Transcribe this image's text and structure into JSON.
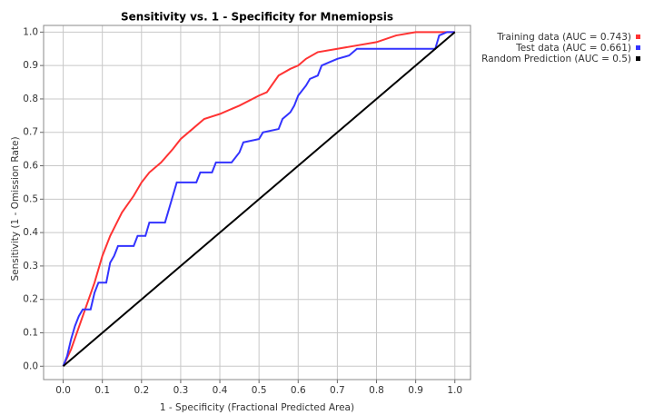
{
  "chart_data": {
    "type": "line",
    "title": "Sensitivity vs. 1 - Specificity for Mnemiopsis",
    "x_label": "1 - Specificity  (Fractional Predicted Area)",
    "y_label": "Sensitivity  (1 - Omission Rate)",
    "xlim": [
      -0.05,
      1.04
    ],
    "ylim": [
      -0.04,
      1.02
    ],
    "xticks": [
      {
        "value": 0,
        "label": "0.0"
      },
      0.1,
      0.2,
      0.3,
      0.4,
      0.5,
      0.6,
      0.7,
      0.8,
      0.9,
      {
        "value": 1,
        "label": "1.0"
      }
    ],
    "yticks": [
      {
        "value": 0,
        "label": "0.0"
      },
      0.1,
      0.2,
      0.3,
      0.4,
      0.5,
      0.6,
      0.7,
      0.8,
      0.9,
      {
        "value": 1,
        "label": "1.0"
      }
    ],
    "grid": true,
    "legend": "outside-top-right",
    "series": [
      {
        "name": "Training data (AUC = 0.743)",
        "color": "#ff3333",
        "x": [
          0,
          0.02,
          0.05,
          0.08,
          0.1,
          0.12,
          0.15,
          0.18,
          0.2,
          0.22,
          0.25,
          0.28,
          0.3,
          0.33,
          0.36,
          0.4,
          0.45,
          0.5,
          0.52,
          0.55,
          0.58,
          0.6,
          0.62,
          0.65,
          0.7,
          0.75,
          0.8,
          0.85,
          0.9,
          1.0
        ],
        "values": [
          0,
          0.05,
          0.15,
          0.25,
          0.33,
          0.39,
          0.46,
          0.51,
          0.55,
          0.58,
          0.61,
          0.65,
          0.68,
          0.71,
          0.74,
          0.755,
          0.78,
          0.81,
          0.82,
          0.87,
          0.89,
          0.9,
          0.92,
          0.94,
          0.95,
          0.96,
          0.97,
          0.99,
          1.0,
          1.0
        ]
      },
      {
        "name": "Test data (AUC = 0.661)",
        "color": "#3333ff",
        "x": [
          0,
          0.01,
          0.02,
          0.03,
          0.04,
          0.05,
          0.07,
          0.08,
          0.09,
          0.11,
          0.12,
          0.13,
          0.14,
          0.18,
          0.19,
          0.21,
          0.22,
          0.26,
          0.27,
          0.28,
          0.29,
          0.34,
          0.35,
          0.38,
          0.39,
          0.43,
          0.45,
          0.46,
          0.5,
          0.51,
          0.55,
          0.56,
          0.58,
          0.59,
          0.6,
          0.62,
          0.63,
          0.65,
          0.66,
          0.68,
          0.7,
          0.73,
          0.75,
          0.76,
          0.95,
          0.96,
          0.98,
          1.0
        ],
        "values": [
          0,
          0.03,
          0.08,
          0.12,
          0.15,
          0.17,
          0.17,
          0.22,
          0.25,
          0.25,
          0.31,
          0.33,
          0.36,
          0.36,
          0.39,
          0.39,
          0.43,
          0.43,
          0.47,
          0.51,
          0.55,
          0.55,
          0.58,
          0.58,
          0.61,
          0.61,
          0.64,
          0.67,
          0.68,
          0.7,
          0.71,
          0.74,
          0.76,
          0.78,
          0.81,
          0.84,
          0.86,
          0.87,
          0.9,
          0.91,
          0.92,
          0.93,
          0.95,
          0.95,
          0.95,
          0.99,
          1.0,
          1.0
        ]
      },
      {
        "name": "Random Prediction (AUC = 0.5)",
        "color": "#000000",
        "x": [
          0,
          1
        ],
        "values": [
          0,
          1
        ]
      }
    ]
  }
}
